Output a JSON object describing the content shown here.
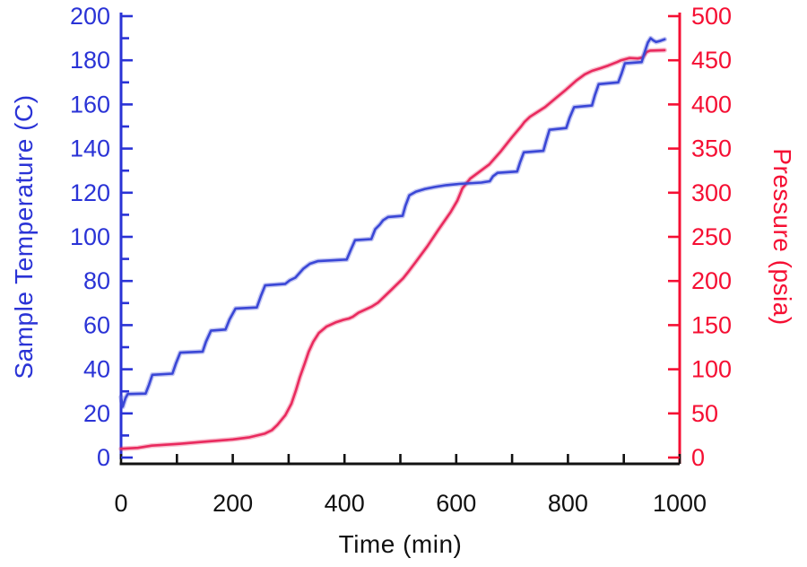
{
  "chart_data": {
    "type": "line",
    "title": "",
    "x_axis": {
      "label": "Time (min)",
      "min": 0,
      "max": 1000,
      "major_tick_step": 200,
      "minor_tick_step": 100,
      "tick_labels": [
        "0",
        "200",
        "400",
        "600",
        "800",
        "1000"
      ],
      "color": "#111111"
    },
    "y_left": {
      "label": "Sample Temperature (C)",
      "min": 0,
      "max": 200,
      "major_tick_step": 20,
      "minor_tick_step": 10,
      "tick_labels": [
        "0",
        "20",
        "40",
        "60",
        "80",
        "100",
        "120",
        "140",
        "160",
        "180",
        "200"
      ],
      "color": "#2a33d6"
    },
    "y_right": {
      "label": "Pressure (psia)",
      "min": 0,
      "max": 500,
      "major_tick_step": 50,
      "tick_labels": [
        "0",
        "50",
        "100",
        "150",
        "200",
        "250",
        "300",
        "350",
        "400",
        "450",
        "500"
      ],
      "color": "#f50f33"
    },
    "grid": false,
    "legend": "none",
    "series": [
      {
        "name": "Pressure",
        "axis": "right",
        "color": "#e92a5e",
        "points": [
          [
            0,
            10
          ],
          [
            30,
            11
          ],
          [
            55,
            13.5
          ],
          [
            105,
            15.5
          ],
          [
            150,
            18
          ],
          [
            200,
            20.5
          ],
          [
            230,
            23
          ],
          [
            257,
            27
          ],
          [
            270,
            31
          ],
          [
            280,
            37
          ],
          [
            294,
            48
          ],
          [
            305,
            61
          ],
          [
            313,
            76
          ],
          [
            320,
            91
          ],
          [
            329,
            107
          ],
          [
            336,
            120
          ],
          [
            344,
            131
          ],
          [
            354,
            141
          ],
          [
            368,
            148.5
          ],
          [
            384,
            153
          ],
          [
            398,
            156
          ],
          [
            408,
            157.5
          ],
          [
            415,
            159.5
          ],
          [
            425,
            164
          ],
          [
            449,
            171
          ],
          [
            460,
            175.5
          ],
          [
            484,
            190
          ],
          [
            505,
            203
          ],
          [
            515,
            211
          ],
          [
            527,
            221
          ],
          [
            548,
            239
          ],
          [
            568,
            258
          ],
          [
            590,
            278
          ],
          [
            602,
            291
          ],
          [
            611,
            305
          ],
          [
            625,
            316
          ],
          [
            640,
            323
          ],
          [
            659,
            332
          ],
          [
            680,
            347
          ],
          [
            700,
            363
          ],
          [
            716,
            375
          ],
          [
            722,
            380
          ],
          [
            732,
            386
          ],
          [
            759,
            397
          ],
          [
            780,
            408
          ],
          [
            797,
            417
          ],
          [
            815,
            427
          ],
          [
            830,
            434
          ],
          [
            843,
            438
          ],
          [
            858,
            441
          ],
          [
            872,
            444
          ],
          [
            888,
            448
          ],
          [
            895,
            450
          ],
          [
            910,
            452.5
          ],
          [
            925,
            452
          ],
          [
            933,
            453
          ],
          [
            937,
            456
          ],
          [
            941,
            459.5
          ],
          [
            947,
            461
          ],
          [
            973,
            461.5
          ]
        ]
      },
      {
        "name": "Sample Temperature",
        "axis": "left",
        "color": "#3a47d6",
        "points": [
          [
            0,
            27.5
          ],
          [
            3,
            23
          ],
          [
            8,
            27
          ],
          [
            12,
            28.8
          ],
          [
            44,
            29
          ],
          [
            50,
            33
          ],
          [
            56,
            37.5
          ],
          [
            92,
            38
          ],
          [
            98,
            42.5
          ],
          [
            106,
            47.5
          ],
          [
            146,
            48
          ],
          [
            152,
            52.5
          ],
          [
            161,
            57.5
          ],
          [
            187,
            58
          ],
          [
            194,
            62.5
          ],
          [
            205,
            67.5
          ],
          [
            243,
            68
          ],
          [
            250,
            73
          ],
          [
            258,
            78
          ],
          [
            294,
            78.7
          ],
          [
            302,
            80.3
          ],
          [
            312,
            81.5
          ],
          [
            326,
            85.5
          ],
          [
            338,
            87.8
          ],
          [
            352,
            89
          ],
          [
            404,
            89.7
          ],
          [
            411,
            94
          ],
          [
            419,
            98.5
          ],
          [
            448,
            99
          ],
          [
            455,
            103.5
          ],
          [
            463,
            105.5
          ],
          [
            469,
            107.5
          ],
          [
            478,
            109
          ],
          [
            504,
            109.5
          ],
          [
            509,
            114
          ],
          [
            516,
            118.8
          ],
          [
            528,
            120.5
          ],
          [
            544,
            121.7
          ],
          [
            562,
            122.6
          ],
          [
            582,
            123.4
          ],
          [
            605,
            124
          ],
          [
            645,
            124.6
          ],
          [
            660,
            125.2
          ],
          [
            666,
            127.5
          ],
          [
            674,
            129
          ],
          [
            709,
            129.6
          ],
          [
            714,
            133.5
          ],
          [
            721,
            138.3
          ],
          [
            756,
            139
          ],
          [
            761,
            143.5
          ],
          [
            767,
            148.5
          ],
          [
            797,
            149.3
          ],
          [
            803,
            154
          ],
          [
            811,
            158.8
          ],
          [
            843,
            159.5
          ],
          [
            848,
            164
          ],
          [
            855,
            169.2
          ],
          [
            890,
            170
          ],
          [
            896,
            174
          ],
          [
            902,
            178.6
          ],
          [
            932,
            179.2
          ],
          [
            937,
            183.5
          ],
          [
            943,
            188
          ],
          [
            948,
            190
          ],
          [
            953,
            189
          ],
          [
            958,
            188.3
          ],
          [
            965,
            188.8
          ],
          [
            973,
            189.5
          ]
        ]
      }
    ]
  }
}
